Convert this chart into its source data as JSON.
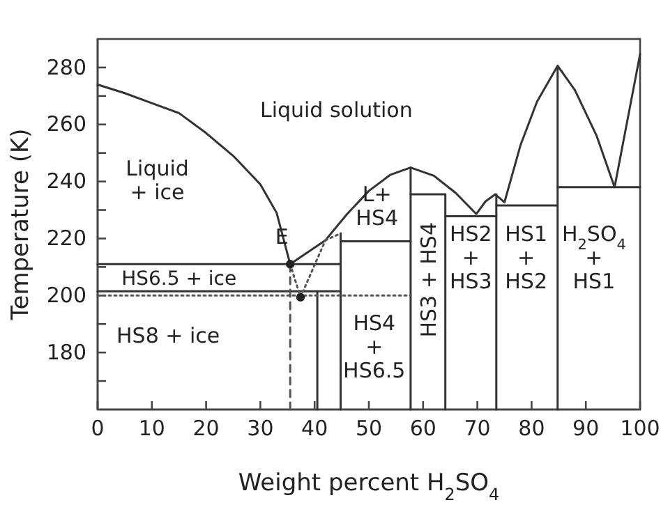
{
  "chart_data": {
    "type": "line",
    "xlabel": "Weight percent H$_{2}$SO$_{4}$",
    "ylabel": "Temperature (K)",
    "xlim": [
      0,
      100
    ],
    "ylim": [
      160,
      290
    ],
    "xticks": [
      0,
      10,
      20,
      30,
      40,
      50,
      60,
      70,
      80,
      90,
      100
    ],
    "yticks": [
      {
        "value": 170,
        "label": null
      },
      180,
      {
        "value": 190,
        "label": null
      },
      200,
      {
        "value": 210,
        "label": null
      },
      220,
      {
        "value": 230,
        "label": null
      },
      240,
      {
        "value": 250,
        "label": null
      },
      260,
      {
        "value": 270,
        "label": null
      },
      280
    ],
    "grid": false,
    "marker": "none",
    "line_style": "solid",
    "series": [
      {
        "color": "#333333",
        "x": [
          0,
          5,
          10,
          15,
          20,
          25,
          30,
          33,
          35.5,
          42,
          46,
          50,
          54,
          57.7,
          62,
          66,
          69.8,
          71.5,
          73.3,
          75,
          78,
          81,
          84.8,
          88,
          92,
          95.3,
          100
        ],
        "values": [
          274,
          271,
          267.5,
          264,
          257,
          249,
          239,
          229,
          211,
          219.4,
          228.6,
          236.7,
          242.4,
          244.9,
          242,
          236,
          228.6,
          233,
          235.5,
          232.7,
          253,
          268,
          280.6,
          272,
          256,
          238,
          284.7
        ]
      },
      {
        "color": "#333333",
        "x": [
          0,
          44.8
        ],
        "values": [
          211,
          211
        ]
      },
      {
        "color": "#333333",
        "x": [
          0,
          44.8
        ],
        "values": [
          201.5,
          201.5
        ]
      },
      {
        "color": "#333333",
        "x": [
          40.5,
          40.5
        ],
        "values": [
          160,
          201.5
        ]
      },
      {
        "color": "#333333",
        "x": [
          44.8,
          44.8
        ],
        "values": [
          160,
          221.8
        ]
      },
      {
        "color": "#333333",
        "x": [
          44.8,
          57.7
        ],
        "values": [
          219,
          219
        ]
      },
      {
        "color": "#333333",
        "x": [
          57.7,
          57.7
        ],
        "values": [
          160,
          244.9
        ]
      },
      {
        "color": "#333333",
        "x": [
          57.7,
          64.1
        ],
        "values": [
          235.5,
          235.5
        ]
      },
      {
        "color": "#333333",
        "x": [
          64.1,
          64.1
        ],
        "values": [
          160,
          235.5
        ]
      },
      {
        "color": "#333333",
        "x": [
          64.1,
          73.5
        ],
        "values": [
          227.8,
          227.8
        ]
      },
      {
        "color": "#333333",
        "x": [
          73.5,
          73.5
        ],
        "values": [
          160,
          235.5
        ]
      },
      {
        "color": "#333333",
        "x": [
          73.5,
          84.8
        ],
        "values": [
          231.6,
          231.6
        ]
      },
      {
        "color": "#333333",
        "x": [
          84.8,
          84.8
        ],
        "values": [
          160,
          280.6
        ]
      },
      {
        "color": "#333333",
        "x": [
          84.8,
          100
        ],
        "values": [
          238,
          238
        ]
      },
      {
        "color": "#555555",
        "line_style": "dashed",
        "x": [
          35.5,
          35.5
        ],
        "values": [
          160,
          211
        ]
      },
      {
        "color": "#555555",
        "line_style": "dotted",
        "x": [
          35.5,
          37.4
        ],
        "values": [
          211,
          199.4
        ]
      },
      {
        "color": "#555555",
        "line_style": "dotted",
        "x": [
          37.4,
          42
        ],
        "values": [
          199.4,
          219.4
        ]
      },
      {
        "color": "#555555",
        "line_style": "dotted",
        "x": [
          42,
          44.8
        ],
        "values": [
          219.4,
          221.8
        ]
      },
      {
        "color": "#555555",
        "line_style": "dotted",
        "x": [
          0,
          57.7
        ],
        "values": [
          200,
          200
        ]
      },
      {
        "type": "scatter",
        "marker": "circle",
        "color": "#222222",
        "x": [
          35.5,
          37.4
        ],
        "values": [
          211,
          199.4
        ]
      }
    ],
    "annotations": [
      "Liquid solution",
      "Liquid\n+ ice",
      "HS6.5 + ice",
      "HS8 + ice",
      {
        "text": "E",
        "x": 35.5,
        "y": 211
      },
      "L+\nHS4",
      "HS4\n+\nHS6.5",
      "HS3 + HS4",
      "HS2\n+\nHS3",
      "HS1\n+\nHS2",
      "H$_{2}$SO$_{4}$\n+\nHS1"
    ]
  }
}
